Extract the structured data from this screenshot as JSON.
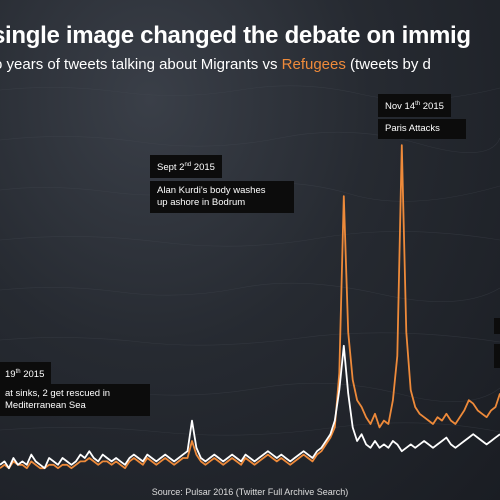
{
  "title": "single image changed the debate on immig",
  "subtitle": {
    "prefix": "o years of tweets talking about Migrants vs ",
    "refugees_word": "Refugees",
    "suffix": " (tweets by d"
  },
  "annotations": {
    "april": {
      "date_prefix": "19",
      "date_sup": "th",
      "date_suffix": " 2015",
      "line1": "at sinks, 2 get rescued in",
      "line2": "Mediterranean Sea"
    },
    "sept": {
      "date_prefix": "Sept 2",
      "date_sup": "nd",
      "date_suffix": " 2015",
      "line1": "Alan Kurdi's body washes",
      "line2": "up ashore in Bodrum"
    },
    "nov": {
      "date_prefix": "Nov 14",
      "date_sup": "th",
      "date_suffix": " 2015",
      "line1": "Paris Attacks"
    }
  },
  "source": "Source: Pulsar 2016 (Twitter Full Archive Search)",
  "colors": {
    "refugees": "#ee8a3a",
    "migrants": "#ffffff",
    "box": "#0c0c0c"
  },
  "chart_data": {
    "type": "line",
    "ylim": [
      0,
      100
    ],
    "grid": false,
    "series": [
      {
        "name": "Migrants",
        "color": "#ffffff",
        "values": [
          3,
          4,
          2,
          5,
          3,
          4,
          3,
          6,
          4,
          3,
          2,
          5,
          4,
          3,
          5,
          4,
          3,
          4,
          6,
          5,
          7,
          5,
          4,
          6,
          5,
          4,
          5,
          4,
          3,
          5,
          6,
          5,
          4,
          6,
          5,
          4,
          5,
          6,
          5,
          4,
          5,
          6,
          7,
          16,
          8,
          5,
          4,
          5,
          6,
          5,
          4,
          5,
          6,
          5,
          4,
          6,
          5,
          4,
          5,
          6,
          7,
          6,
          5,
          6,
          5,
          4,
          5,
          6,
          7,
          6,
          5,
          7,
          8,
          10,
          12,
          16,
          25,
          38,
          24,
          14,
          10,
          12,
          9,
          8,
          10,
          8,
          9,
          8,
          10,
          9,
          7,
          8,
          9,
          8,
          9,
          10,
          9,
          8,
          9,
          10,
          11,
          9,
          8,
          9,
          10,
          11,
          12,
          11,
          10,
          9,
          10,
          11,
          12
        ]
      },
      {
        "name": "Refugees",
        "color": "#ee8a3a",
        "values": [
          2,
          3,
          2,
          4,
          3,
          3,
          2,
          4,
          3,
          2,
          2,
          3,
          3,
          2,
          3,
          3,
          2,
          3,
          4,
          4,
          5,
          4,
          3,
          4,
          4,
          3,
          4,
          3,
          2,
          4,
          5,
          4,
          3,
          5,
          4,
          3,
          4,
          5,
          4,
          3,
          4,
          5,
          5,
          10,
          6,
          4,
          3,
          4,
          5,
          4,
          3,
          4,
          5,
          4,
          3,
          5,
          4,
          3,
          4,
          5,
          6,
          5,
          4,
          5,
          4,
          3,
          4,
          5,
          6,
          5,
          4,
          6,
          7,
          9,
          11,
          14,
          30,
          82,
          42,
          28,
          22,
          20,
          17,
          15,
          18,
          14,
          16,
          15,
          22,
          35,
          97,
          42,
          25,
          20,
          18,
          17,
          16,
          15,
          17,
          16,
          18,
          16,
          15,
          17,
          19,
          22,
          21,
          19,
          18,
          17,
          19,
          20,
          24
        ]
      }
    ]
  }
}
